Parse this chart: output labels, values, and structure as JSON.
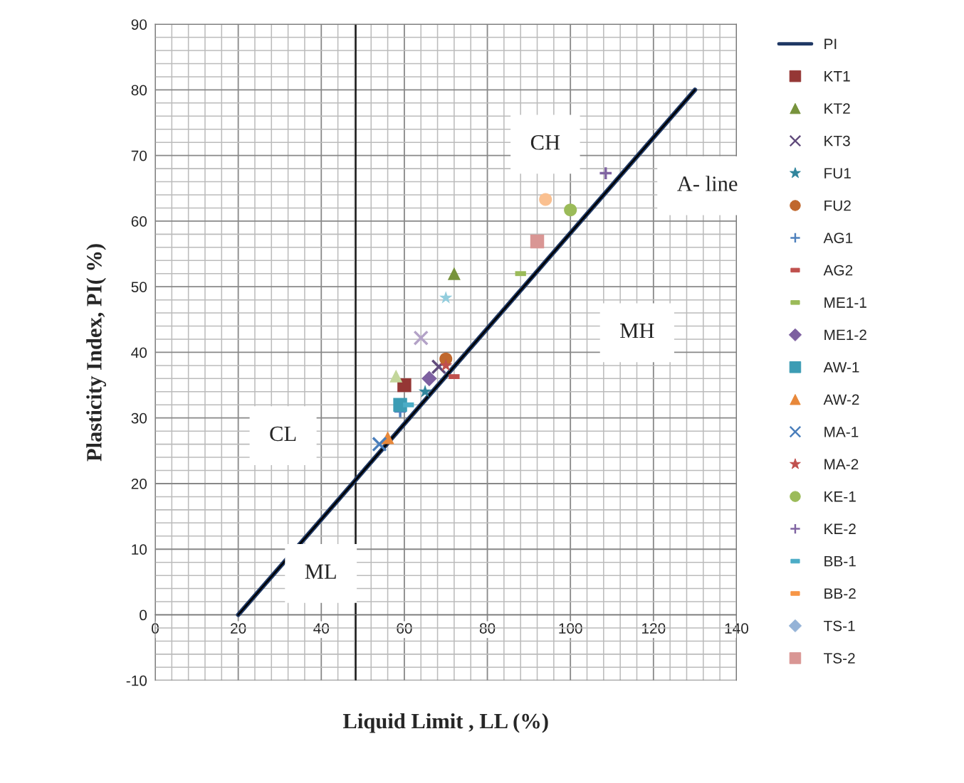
{
  "chart_data": {
    "type": "scatter",
    "xlabel": "Liquid Limit , LL (%)",
    "ylabel": "Plasticity Index, PI( %)",
    "xlim": [
      0,
      140
    ],
    "xticks": [
      0,
      20,
      40,
      60,
      80,
      100,
      120,
      140
    ],
    "ylim": [
      -10,
      90
    ],
    "yticks": [
      -10,
      0,
      10,
      20,
      30,
      40,
      50,
      60,
      70,
      80,
      90
    ],
    "grid": true,
    "legend": "right",
    "ref_lines": [
      {
        "axis": "x",
        "value": 48.3,
        "color": "#000000"
      }
    ],
    "annotations": [
      "CH",
      "A- line",
      "MH",
      "CL",
      "ML"
    ],
    "series": [
      {
        "name": "PI",
        "type": "line",
        "color": "#1f3864",
        "x": [
          20,
          130
        ],
        "values": [
          0,
          80
        ]
      },
      {
        "name": "KT1",
        "marker": "square",
        "color": "#953735",
        "x": [
          60
        ],
        "values": [
          35
        ]
      },
      {
        "name": "KT2",
        "marker": "triangle",
        "color": "#77933c",
        "x": [
          72
        ],
        "values": [
          52
        ]
      },
      {
        "name": "KT3",
        "marker": "cross",
        "color": "#604a7b",
        "x": [
          68.3
        ],
        "values": [
          37.8
        ]
      },
      {
        "name": "FU1",
        "marker": "star",
        "color": "#31859c",
        "x": [
          65
        ],
        "values": [
          34
        ]
      },
      {
        "name": "FU2",
        "marker": "circle",
        "color": "#c0682e",
        "x": [
          70
        ],
        "values": [
          39
        ]
      },
      {
        "name": "AG1",
        "marker": "plus",
        "color": "#4f81bd",
        "x": [
          59
        ],
        "values": [
          31
        ]
      },
      {
        "name": "AG2",
        "color": "#c0504d",
        "x": [
          72
        ],
        "values": [
          36.3
        ]
      },
      {
        "name": "ME1-1",
        "color": "#9bbb59",
        "x": [
          88
        ],
        "values": [
          52
        ]
      },
      {
        "name": "ME1-2",
        "marker": "diamond",
        "color": "#7d60a0",
        "x": [
          66
        ],
        "values": [
          36
        ]
      },
      {
        "name": "AW-1",
        "marker": "square",
        "color": "#3c9cb4",
        "x": [
          59
        ],
        "values": [
          32
        ]
      },
      {
        "name": "AW-2",
        "marker": "triangle",
        "color": "#e8883a",
        "x": [
          56
        ],
        "values": [
          27
        ]
      },
      {
        "name": "MA-1",
        "marker": "cross",
        "color": "#4a7ebb",
        "x": [
          54
        ],
        "values": [
          26
        ]
      },
      {
        "name": "MA-2",
        "marker": "star",
        "color": "#c0504d",
        "x": [
          70
        ],
        "values": [
          38
        ]
      },
      {
        "name": "KE-1",
        "marker": "circle",
        "color": "#9bbb59",
        "x": [
          100
        ],
        "values": [
          61.7
        ]
      },
      {
        "name": "KE-2",
        "marker": "plus",
        "color": "#8064a2",
        "x": [
          108.5
        ],
        "values": [
          67.3
        ]
      },
      {
        "name": "BB-1",
        "color": "#4bacc6",
        "x": [
          61
        ],
        "values": [
          32
        ]
      },
      {
        "name": "BB-2",
        "color": "#f79646",
        "x": [
          null
        ],
        "values": [
          null
        ]
      },
      {
        "name": "TS-1",
        "marker": "diamond",
        "color": "#95b3d7",
        "x": [
          null
        ],
        "values": [
          null
        ]
      },
      {
        "name": "TS-2",
        "marker": "square",
        "color": "#d99694",
        "x": [
          92
        ],
        "values": [
          56.9
        ]
      },
      {
        "marker": "triangle",
        "color": "#c3d69b",
        "x": [
          58
        ],
        "values": [
          36.4
        ]
      },
      {
        "marker": "cross",
        "color": "#b3a2c7",
        "x": [
          64
        ],
        "values": [
          42.2
        ]
      },
      {
        "marker": "star",
        "color": "#93cddd",
        "x": [
          70
        ],
        "values": [
          48.3
        ]
      },
      {
        "marker": "circle",
        "color": "#fac090",
        "x": [
          94
        ],
        "values": [
          63.3
        ]
      }
    ]
  }
}
